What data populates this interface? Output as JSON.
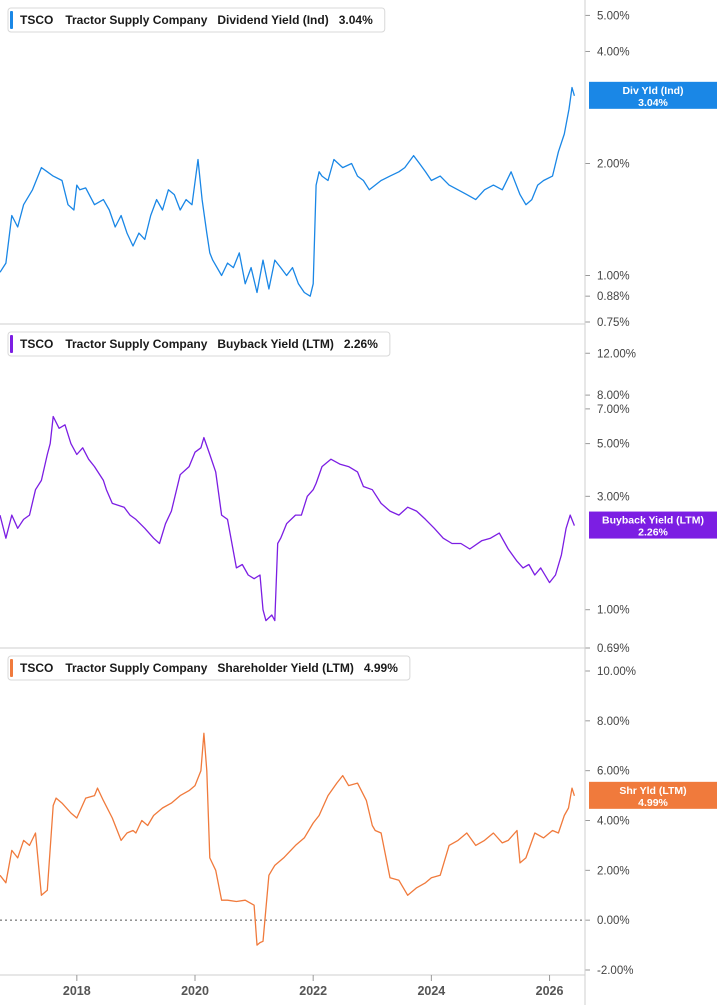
{
  "chart_data": [
    {
      "type": "line",
      "scale": "log",
      "ticker": "TSCO",
      "company": "Tractor Supply Company",
      "metric": "Dividend Yield (Ind)",
      "current_value": "3.04%",
      "tag_line1": "Div Yld (Ind)",
      "tag_line2": "3.04%",
      "color": "#1a87e6",
      "ylim": [
        0.75,
        5.3
      ],
      "yticks": [
        5.0,
        4.0,
        2.0,
        1.0,
        0.88,
        0.75
      ],
      "ytick_labels": [
        "5.00%",
        "4.00%",
        "2.00%",
        "1.00%",
        "0.88%",
        "0.75%"
      ],
      "series": [
        {
          "x": [
            2016.7,
            2016.8,
            2016.9,
            2017.0,
            2017.1,
            2017.25,
            2017.4,
            2017.5,
            2017.6,
            2017.75,
            2017.85,
            2017.95,
            2018.0,
            2018.05,
            2018.15,
            2018.3,
            2018.45,
            2018.55,
            2018.65,
            2018.75,
            2018.85,
            2018.95,
            2019.05,
            2019.15,
            2019.25,
            2019.35,
            2019.45,
            2019.55,
            2019.65,
            2019.75,
            2019.85,
            2019.95,
            2020.05,
            2020.12,
            2020.2,
            2020.25,
            2020.3,
            2020.45,
            2020.55,
            2020.65,
            2020.75,
            2020.85,
            2020.95,
            2021.05,
            2021.15,
            2021.25,
            2021.35,
            2021.45,
            2021.55,
            2021.65,
            2021.75,
            2021.85,
            2021.95,
            2022.0,
            2022.05,
            2022.1,
            2022.15,
            2022.25,
            2022.35,
            2022.5,
            2022.65,
            2022.75,
            2022.85,
            2022.95,
            2023.05,
            2023.15,
            2023.3,
            2023.45,
            2023.55,
            2023.7,
            2023.8,
            2023.9,
            2024.0,
            2024.15,
            2024.3,
            2024.45,
            2024.6,
            2024.75,
            2024.9,
            2025.05,
            2025.2,
            2025.35,
            2025.5,
            2025.6,
            2025.7,
            2025.8,
            2025.9,
            2026.05,
            2026.15,
            2026.25,
            2026.33,
            2026.38,
            2026.42
          ],
          "values": [
            1.02,
            1.08,
            1.45,
            1.35,
            1.55,
            1.7,
            1.95,
            1.9,
            1.85,
            1.8,
            1.55,
            1.5,
            1.75,
            1.7,
            1.72,
            1.55,
            1.6,
            1.5,
            1.35,
            1.45,
            1.3,
            1.2,
            1.3,
            1.25,
            1.45,
            1.6,
            1.5,
            1.7,
            1.65,
            1.5,
            1.6,
            1.55,
            2.05,
            1.6,
            1.3,
            1.15,
            1.1,
            1.0,
            1.08,
            1.05,
            1.15,
            0.95,
            1.05,
            0.9,
            1.1,
            0.92,
            1.1,
            1.05,
            1.0,
            1.05,
            0.95,
            0.9,
            0.88,
            0.95,
            1.75,
            1.9,
            1.85,
            1.8,
            2.05,
            1.95,
            2.0,
            1.85,
            1.8,
            1.7,
            1.75,
            1.8,
            1.85,
            1.9,
            1.95,
            2.1,
            2.0,
            1.9,
            1.8,
            1.85,
            1.75,
            1.7,
            1.65,
            1.6,
            1.7,
            1.75,
            1.7,
            1.9,
            1.65,
            1.55,
            1.6,
            1.75,
            1.8,
            1.85,
            2.15,
            2.4,
            2.8,
            3.2,
            3.04
          ]
        }
      ]
    },
    {
      "type": "line",
      "scale": "log",
      "ticker": "TSCO",
      "company": "Tractor Supply Company",
      "metric": "Buyback Yield (LTM)",
      "current_value": "2.26%",
      "tag_line1": "Buyback Yield (LTM)",
      "tag_line2": "2.26%",
      "color": "#7c1ee3",
      "ylim": [
        0.69,
        13.0
      ],
      "yticks": [
        12.0,
        8.0,
        7.0,
        5.0,
        3.0,
        1.0,
        0.69
      ],
      "ytick_labels": [
        "12.00%",
        "8.00%",
        "7.00%",
        "5.00%",
        "3.00%",
        "1.00%",
        "0.69%"
      ],
      "series": [
        {
          "x": [
            2016.7,
            2016.8,
            2016.9,
            2017.0,
            2017.1,
            2017.2,
            2017.3,
            2017.4,
            2017.5,
            2017.55,
            2017.6,
            2017.7,
            2017.8,
            2017.9,
            2018.0,
            2018.1,
            2018.2,
            2018.3,
            2018.45,
            2018.5,
            2018.6,
            2018.8,
            2018.9,
            2019.0,
            2019.15,
            2019.3,
            2019.4,
            2019.5,
            2019.6,
            2019.75,
            2019.9,
            2020.0,
            2020.1,
            2020.15,
            2020.25,
            2020.35,
            2020.45,
            2020.55,
            2020.7,
            2020.8,
            2020.9,
            2021.0,
            2021.1,
            2021.15,
            2021.2,
            2021.3,
            2021.35,
            2021.4,
            2021.45,
            2021.55,
            2021.7,
            2021.8,
            2021.9,
            2022.0,
            2022.05,
            2022.15,
            2022.3,
            2022.45,
            2022.6,
            2022.75,
            2022.85,
            2023.0,
            2023.15,
            2023.3,
            2023.45,
            2023.6,
            2023.75,
            2023.9,
            2024.05,
            2024.2,
            2024.35,
            2024.5,
            2024.65,
            2024.85,
            2025.0,
            2025.15,
            2025.3,
            2025.45,
            2025.55,
            2025.65,
            2025.75,
            2025.85,
            2026.0,
            2026.1,
            2026.2,
            2026.28,
            2026.35,
            2026.42
          ],
          "values": [
            2.5,
            2.0,
            2.5,
            2.2,
            2.4,
            2.5,
            3.2,
            3.5,
            4.5,
            5.0,
            6.5,
            5.8,
            6.0,
            5.0,
            4.5,
            4.8,
            4.3,
            4.0,
            3.5,
            3.2,
            2.8,
            2.7,
            2.5,
            2.4,
            2.2,
            2.0,
            1.9,
            2.3,
            2.6,
            3.7,
            4.0,
            4.6,
            4.8,
            5.3,
            4.5,
            3.8,
            2.5,
            2.4,
            1.5,
            1.55,
            1.4,
            1.35,
            1.4,
            1.0,
            0.9,
            0.95,
            0.9,
            1.9,
            2.0,
            2.3,
            2.5,
            2.5,
            3.0,
            3.2,
            3.4,
            4.0,
            4.3,
            4.1,
            4.0,
            3.8,
            3.3,
            3.2,
            2.8,
            2.6,
            2.5,
            2.7,
            2.6,
            2.4,
            2.2,
            2.0,
            1.9,
            1.9,
            1.8,
            1.95,
            2.0,
            2.1,
            1.8,
            1.6,
            1.5,
            1.55,
            1.4,
            1.5,
            1.3,
            1.4,
            1.7,
            2.2,
            2.5,
            2.26
          ]
        }
      ]
    },
    {
      "type": "line",
      "scale": "linear",
      "ticker": "TSCO",
      "company": "Tractor Supply Company",
      "metric": "Shareholder Yield (LTM)",
      "current_value": "4.99%",
      "tag_line1": "Shr Yld (LTM)",
      "tag_line2": "4.99%",
      "color": "#f07a3c",
      "ylim": [
        -2.0,
        10.0
      ],
      "yticks": [
        10.0,
        8.0,
        6.0,
        4.0,
        2.0,
        0.0,
        -2.0
      ],
      "ytick_labels": [
        "10.00%",
        "8.00%",
        "6.00%",
        "4.00%",
        "2.00%",
        "0.00%",
        "-2.00%"
      ],
      "zero_line": true,
      "series": [
        {
          "x": [
            2016.7,
            2016.8,
            2016.9,
            2017.0,
            2017.1,
            2017.2,
            2017.3,
            2017.4,
            2017.5,
            2017.6,
            2017.65,
            2017.75,
            2017.9,
            2018.0,
            2018.15,
            2018.3,
            2018.35,
            2018.45,
            2018.6,
            2018.75,
            2018.85,
            2018.95,
            2019.0,
            2019.1,
            2019.2,
            2019.3,
            2019.45,
            2019.6,
            2019.75,
            2019.9,
            2020.0,
            2020.1,
            2020.15,
            2020.2,
            2020.25,
            2020.35,
            2020.45,
            2020.55,
            2020.7,
            2020.85,
            2021.0,
            2021.05,
            2021.1,
            2021.15,
            2021.25,
            2021.3,
            2021.35,
            2021.5,
            2021.7,
            2021.85,
            2022.0,
            2022.1,
            2022.25,
            2022.4,
            2022.5,
            2022.6,
            2022.75,
            2022.9,
            2023.0,
            2023.05,
            2023.15,
            2023.3,
            2023.45,
            2023.6,
            2023.75,
            2023.9,
            2024.0,
            2024.15,
            2024.3,
            2024.45,
            2024.6,
            2024.75,
            2024.9,
            2025.05,
            2025.2,
            2025.3,
            2025.45,
            2025.5,
            2025.6,
            2025.75,
            2025.9,
            2026.05,
            2026.15,
            2026.25,
            2026.32,
            2026.38,
            2026.42
          ],
          "values": [
            1.8,
            1.5,
            2.8,
            2.5,
            3.2,
            3.0,
            3.5,
            1.0,
            1.2,
            4.6,
            4.9,
            4.7,
            4.3,
            4.1,
            4.9,
            5.0,
            5.3,
            4.8,
            4.1,
            3.2,
            3.5,
            3.6,
            3.5,
            4.0,
            3.8,
            4.2,
            4.5,
            4.7,
            5.0,
            5.2,
            5.4,
            6.0,
            7.5,
            6.0,
            2.5,
            2.0,
            0.8,
            0.8,
            0.75,
            0.8,
            0.6,
            -1.0,
            -0.9,
            -0.85,
            1.8,
            2.0,
            2.2,
            2.5,
            3.0,
            3.3,
            3.9,
            4.2,
            5.0,
            5.5,
            5.8,
            5.4,
            5.5,
            4.8,
            3.8,
            3.6,
            3.5,
            1.7,
            1.6,
            1.0,
            1.3,
            1.5,
            1.7,
            1.8,
            3.0,
            3.2,
            3.5,
            3.0,
            3.2,
            3.5,
            3.1,
            3.2,
            3.6,
            2.3,
            2.5,
            3.5,
            3.3,
            3.6,
            3.5,
            4.2,
            4.5,
            5.3,
            4.99
          ]
        }
      ]
    }
  ],
  "x_axis": {
    "range": [
      2016.7,
      2026.6
    ],
    "ticks": [
      2018,
      2020,
      2022,
      2024,
      2026
    ],
    "tick_labels": [
      "2018",
      "2020",
      "2022",
      "2024",
      "2026"
    ]
  }
}
